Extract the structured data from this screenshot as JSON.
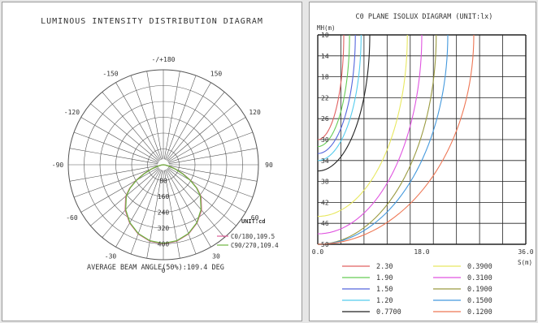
{
  "chart_data": [
    {
      "type": "polar",
      "title": "LUMINOUS INTENSITY DISTRIBUTION DIAGRAM",
      "angle_labels": [
        {
          "angle": 180,
          "text": "-/+180"
        },
        {
          "angle": 150,
          "text": "150"
        },
        {
          "angle": -150,
          "text": "-150"
        },
        {
          "angle": 120,
          "text": "120"
        },
        {
          "angle": -120,
          "text": "-120"
        },
        {
          "angle": 90,
          "text": "90"
        },
        {
          "angle": -90,
          "text": "-90"
        },
        {
          "angle": 60,
          "text": "60"
        },
        {
          "angle": -60,
          "text": "-60"
        },
        {
          "angle": 30,
          "text": "30"
        },
        {
          "angle": -30,
          "text": "-30"
        },
        {
          "angle": 0,
          "text": "0"
        }
      ],
      "radial_ticks": [
        80,
        160,
        240,
        320,
        400
      ],
      "radial_max": 480,
      "unit_label": "UNIT:cd",
      "series": [
        {
          "name": "C0/180,109.5",
          "color": "#e0609a",
          "gamma": [
            0,
            10,
            20,
            30,
            40,
            50,
            55,
            60,
            65,
            70,
            75,
            80,
            85,
            90
          ],
          "intensity": [
            400,
            392,
            372,
            340,
            300,
            248,
            208,
            160,
            110,
            66,
            34,
            14,
            5,
            0
          ]
        },
        {
          "name": "C90/270,109.4",
          "color": "#6db33f",
          "gamma": [
            0,
            10,
            20,
            30,
            40,
            50,
            55,
            60,
            65,
            70,
            75,
            80,
            85,
            90
          ],
          "intensity": [
            398,
            390,
            370,
            338,
            296,
            244,
            204,
            156,
            106,
            64,
            32,
            13,
            5,
            0
          ]
        }
      ],
      "footer": "AVERAGE BEAM ANGLE(50%):109.4 DEG"
    },
    {
      "type": "contour",
      "title": "C0 PLANE ISOLUX DIAGRAM (UNIT:lx)",
      "ylabel": "MH(m)",
      "xlabel": "S(m)",
      "x_ticks": [
        "0.0",
        "18.0",
        "36.0"
      ],
      "xlim": [
        0,
        36
      ],
      "y_ticks": [
        "10",
        "14",
        "18",
        "22",
        "26",
        "30",
        "34",
        "38",
        "42",
        "46",
        "50"
      ],
      "ylim": [
        10,
        50
      ],
      "levels": [
        {
          "value": "2.30",
          "color": "#e06060",
          "reach_s": 4.5,
          "start_mh": 10
        },
        {
          "value": "1.90",
          "color": "#66cc55",
          "reach_s": 5.5,
          "start_mh": 10
        },
        {
          "value": "1.50",
          "color": "#5566dd",
          "reach_s": 6.5,
          "start_mh": 10
        },
        {
          "value": "1.20",
          "color": "#55ccee",
          "reach_s": 7.5,
          "start_mh": 10
        },
        {
          "value": "0.7700",
          "color": "#222222",
          "reach_s": 9.0,
          "start_mh": 10
        },
        {
          "value": "0.3900",
          "color": "#e8e860",
          "reach_s": 15.5,
          "start_mh": 10
        },
        {
          "value": "0.3100",
          "color": "#e055e0",
          "reach_s": 18.0,
          "start_mh": 10
        },
        {
          "value": "0.1900",
          "color": "#9a9a40",
          "reach_s": 20.5,
          "start_mh": 10
        },
        {
          "value": "0.1500",
          "color": "#4499dd",
          "reach_s": 22.5,
          "start_mh": 10
        },
        {
          "value": "0.1200",
          "color": "#ee7755",
          "reach_s": 27.0,
          "start_mh": 10
        }
      ],
      "grid": true
    }
  ]
}
